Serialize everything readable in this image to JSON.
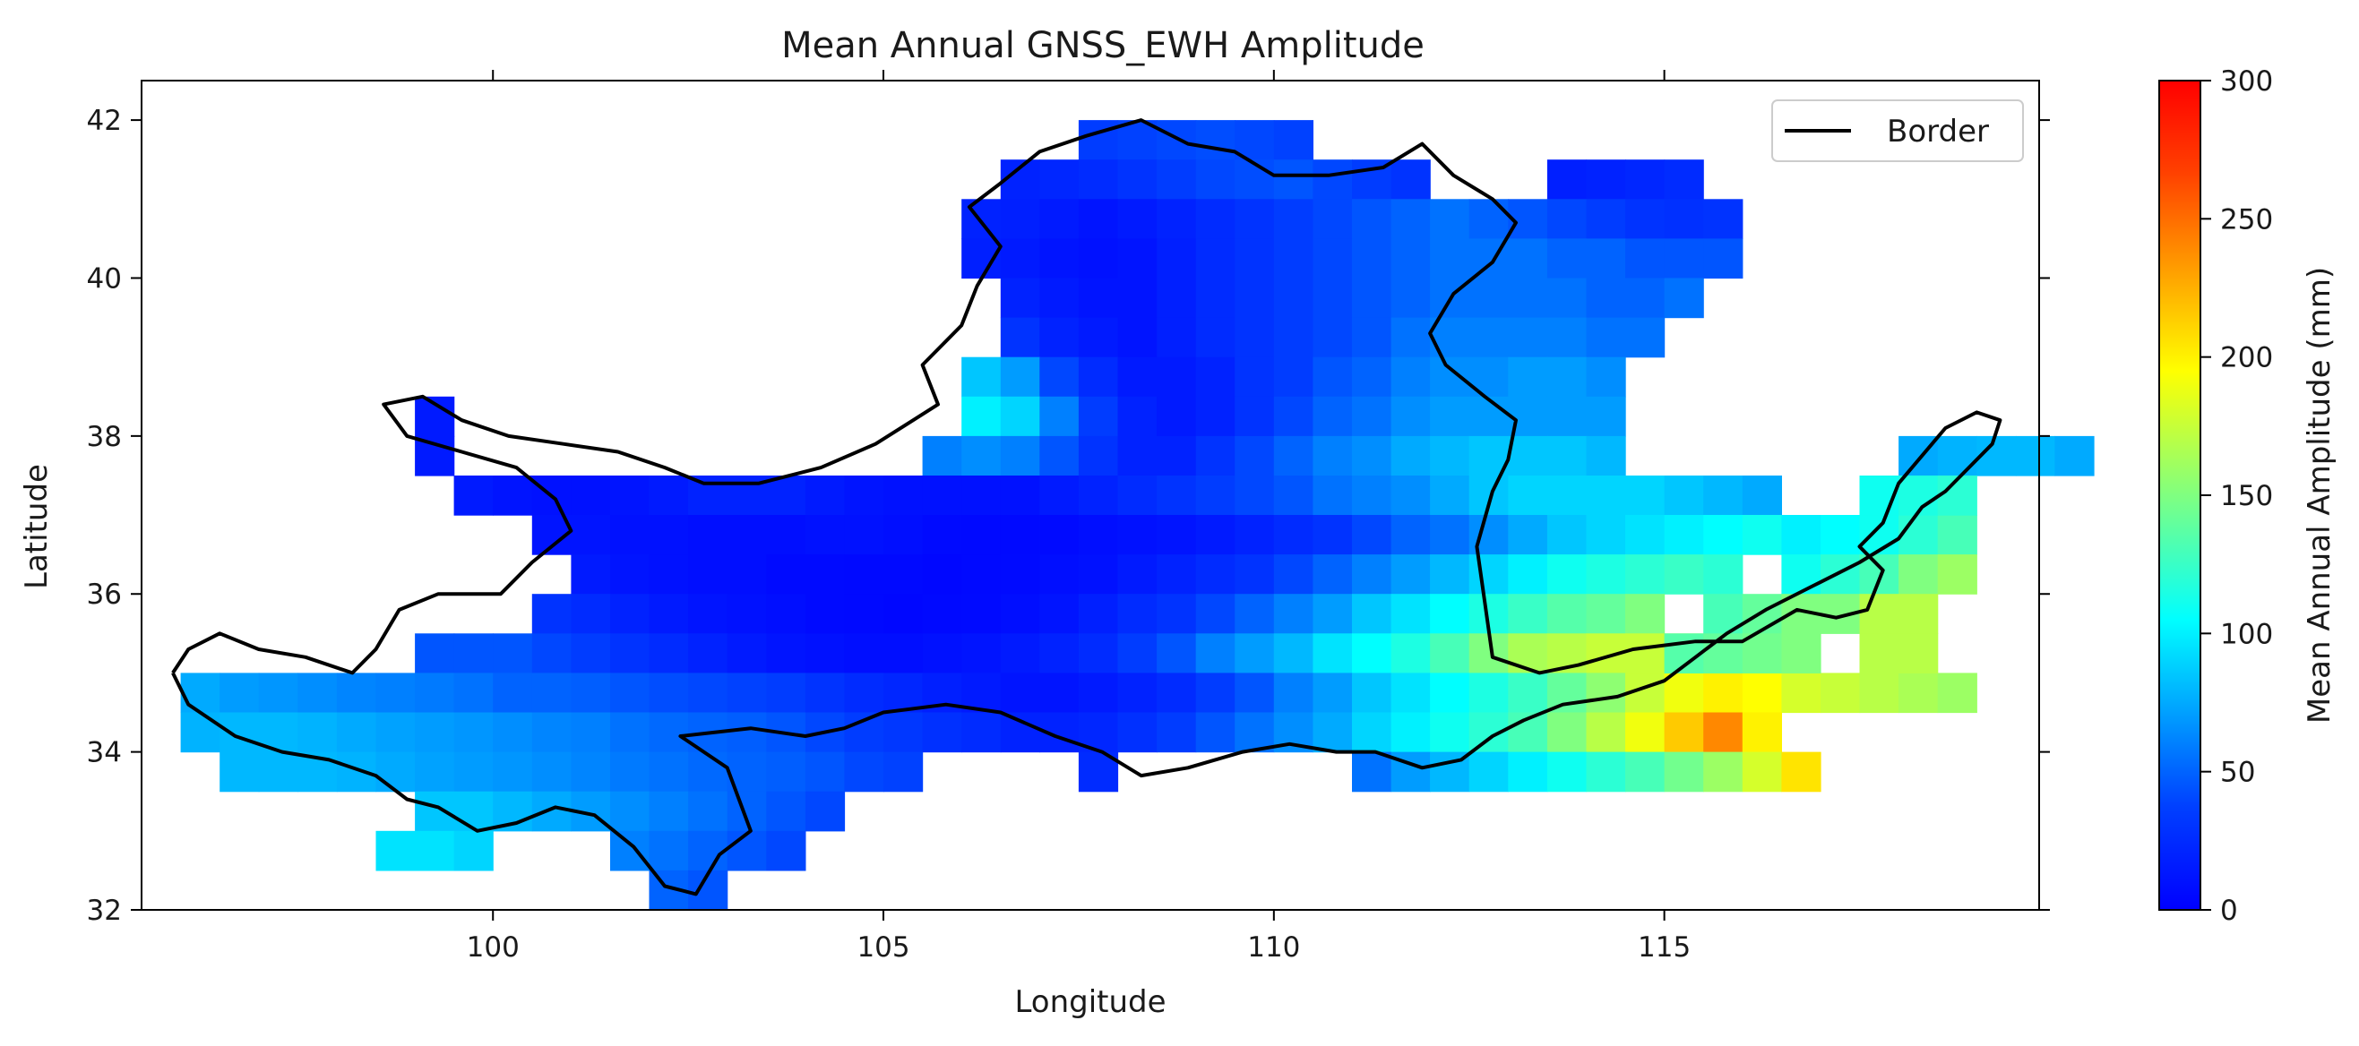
{
  "chart_data": {
    "type": "heatmap",
    "title": "Mean Annual GNSS_EWH Amplitude",
    "xlabel": "Longitude",
    "ylabel": "Latitude",
    "xlim": [
      95.5,
      119.8
    ],
    "ylim": [
      32,
      42.5
    ],
    "xticks": [
      "100",
      "105",
      "110",
      "115"
    ],
    "yticks": [
      "32",
      "34",
      "36",
      "38",
      "40",
      "42"
    ],
    "colorbar": {
      "label": "Mean Annual Amplitude (mm)",
      "range": [
        0,
        300
      ],
      "ticks": [
        "0",
        "50",
        "100",
        "150",
        "200",
        "250",
        "300"
      ],
      "colormap": "jet"
    },
    "legend": {
      "entries": [
        "Border"
      ],
      "placement": "top-right"
    },
    "grid": false,
    "cell_size_deg": 0.5,
    "grid_origin": {
      "lon": 96,
      "lat": 32.5
    },
    "grid_rows_from_north": [
      {
        "row_lat_top": 42.0,
        "start_lon": 107.5,
        "values": [
          35,
          38,
          40,
          42,
          40,
          38
        ]
      },
      {
        "row_lat_top": 41.5,
        "start_lon": 106.5,
        "values": [
          20,
          22,
          25,
          30,
          35,
          40,
          42,
          45,
          40,
          35,
          30,
          -1,
          -1,
          -1,
          18,
          20,
          22,
          25
        ]
      },
      {
        "row_lat_top": 41.0,
        "start_lon": 106.0,
        "values": [
          20,
          18,
          15,
          12,
          15,
          20,
          25,
          30,
          35,
          40,
          45,
          50,
          55,
          50,
          45,
          40,
          35,
          30,
          28,
          30
        ]
      },
      {
        "row_lat_top": 40.5,
        "start_lon": 106.0,
        "values": [
          18,
          15,
          12,
          10,
          12,
          18,
          25,
          30,
          35,
          40,
          45,
          50,
          55,
          55,
          55,
          50,
          50,
          45,
          45,
          45
        ]
      },
      {
        "row_lat_top": 40.0,
        "start_lon": 106.5,
        "values": [
          20,
          15,
          12,
          12,
          18,
          25,
          30,
          35,
          40,
          45,
          50,
          55,
          55,
          55,
          55,
          50,
          50,
          55
        ]
      },
      {
        "row_lat_top": 39.5,
        "start_lon": 106.5,
        "values": [
          30,
          20,
          15,
          12,
          18,
          25,
          30,
          35,
          40,
          45,
          55,
          60,
          60,
          60,
          60,
          55,
          55
        ]
      },
      {
        "row_lat_top": 39.0,
        "start_lon": 106.0,
        "values": [
          85,
          70,
          40,
          25,
          15,
          15,
          20,
          30,
          35,
          45,
          50,
          60,
          65,
          65,
          70,
          70,
          65
        ]
      },
      {
        "row_lat_top": 38.5,
        "start_lon": 106.0,
        "values": [
          100,
          90,
          60,
          35,
          20,
          15,
          20,
          30,
          40,
          50,
          55,
          65,
          70,
          70,
          70,
          70,
          70
        ]
      },
      {
        "row_lat_top": 38.0,
        "start_lon": 105.5,
        "values": [
          60,
          65,
          60,
          45,
          30,
          20,
          20,
          30,
          40,
          50,
          60,
          65,
          75,
          80,
          85,
          85,
          85,
          80
        ]
      },
      {
        "row_lat_top": 38.5,
        "start_lon": 99.0,
        "values": [
          15
        ]
      },
      {
        "row_lat_top": 38.0,
        "start_lon": 99.0,
        "values": [
          15
        ]
      },
      {
        "row_lat_top": 37.5,
        "start_lon": 99.5,
        "values": [
          15,
          12,
          10,
          10,
          12,
          15,
          20,
          20,
          20,
          15,
          12,
          10,
          10,
          10,
          10,
          15,
          20,
          25,
          30,
          35,
          40,
          45,
          55,
          60,
          65,
          75,
          85,
          90,
          90,
          90,
          90,
          85,
          80,
          75
        ]
      },
      {
        "row_lat_top": 37.0,
        "start_lon": 100.5,
        "values": [
          12,
          12,
          10,
          10,
          8,
          8,
          8,
          10,
          10,
          8,
          6,
          5,
          5,
          6,
          8,
          10,
          12,
          15,
          20,
          25,
          30,
          40,
          50,
          55,
          65,
          75,
          85,
          90,
          95,
          100,
          105,
          110,
          100
        ]
      },
      {
        "row_lat_top": 36.5,
        "start_lon": 101.0,
        "values": [
          15,
          12,
          10,
          8,
          8,
          6,
          6,
          5,
          5,
          4,
          5,
          6,
          8,
          10,
          15,
          20,
          25,
          30,
          40,
          50,
          60,
          70,
          80,
          90,
          100,
          110,
          115,
          120,
          125,
          120
        ]
      },
      {
        "row_lat_top": 36.0,
        "start_lon": 100.5,
        "values": [
          30,
          25,
          20,
          15,
          12,
          10,
          8,
          6,
          5,
          4,
          5,
          6,
          8,
          12,
          18,
          25,
          30,
          40,
          50,
          60,
          70,
          85,
          95,
          105,
          115,
          125,
          135,
          140,
          150
        ]
      },
      {
        "row_lat_top": 35.5,
        "start_lon": 99.0,
        "values": [
          45,
          45,
          45,
          40,
          35,
          30,
          25,
          20,
          15,
          12,
          10,
          8,
          8,
          10,
          12,
          15,
          20,
          25,
          35,
          45,
          60,
          70,
          80,
          95,
          105,
          115,
          130,
          150,
          165,
          170,
          175,
          175,
          170
        ]
      },
      {
        "row_lat_top": 35.0,
        "start_lon": 96.0,
        "values": [
          75,
          70,
          68,
          65,
          62,
          60,
          58,
          55,
          50,
          50,
          48,
          45,
          42,
          40,
          38,
          35,
          30,
          25,
          22,
          18,
          15,
          12,
          12,
          15,
          20,
          25,
          35,
          45,
          60,
          70,
          85,
          95,
          105,
          115,
          125,
          140,
          155,
          175,
          190,
          200,
          195,
          180,
          175,
          170,
          165,
          160
        ]
      },
      {
        "row_lat_top": 34.5,
        "start_lon": 96.0,
        "values": [
          78,
          80,
          80,
          78,
          75,
          72,
          70,
          68,
          65,
          62,
          60,
          55,
          52,
          50,
          48,
          45,
          40,
          35,
          32,
          28,
          25,
          20,
          20,
          22,
          28,
          35,
          45,
          55,
          65,
          75,
          90,
          100,
          110,
          120,
          130,
          150,
          170,
          190,
          215,
          240,
          200
        ]
      },
      {
        "row_lat_top": 34.0,
        "start_lon": 96.5,
        "values": [
          80,
          80,
          80,
          78,
          75,
          72,
          70,
          68,
          65,
          62,
          58,
          55,
          52,
          50,
          48,
          45,
          40,
          38,
          -1,
          -1,
          -1,
          -1,
          25,
          -1,
          -1,
          -1,
          -1,
          -1,
          -1,
          55,
          70,
          80,
          90,
          100,
          110,
          120,
          130,
          145,
          160,
          180,
          205
        ]
      },
      {
        "row_lat_top": 33.5,
        "start_lon": 99.0,
        "values": [
          85,
          85,
          80,
          75,
          70,
          65,
          60,
          55,
          50,
          45,
          40
        ]
      },
      {
        "row_lat_top": 33.0,
        "start_lon": 98.5,
        "values": [
          95,
          95,
          90,
          -1,
          -1,
          -1,
          60,
          55,
          50,
          45,
          40
        ]
      },
      {
        "row_lat_top": 32.5,
        "start_lon": 102.0,
        "values": [
          50,
          45
        ]
      },
      {
        "row_lat_top": 37.0,
        "start_lon": 117.0,
        "values": [
          105,
          110,
          120,
          130
        ]
      },
      {
        "row_lat_top": 36.5,
        "start_lon": 116.5,
        "values": [
          110,
          120,
          130,
          150,
          160
        ]
      },
      {
        "row_lat_top": 36.0,
        "start_lon": 115.5,
        "values": [
          130,
          140,
          150,
          150,
          170,
          170
        ]
      },
      {
        "row_lat_top": 35.5,
        "start_lon": 115.0,
        "values": [
          135,
          140,
          145,
          150,
          -1,
          170,
          170
        ]
      },
      {
        "row_lat_top": 38.0,
        "start_lon": 118.0,
        "values": [
          75,
          78,
          80,
          80,
          75
        ]
      },
      {
        "row_lat_top": 37.5,
        "start_lon": 117.5,
        "values": [
          110,
          115,
          120
        ]
      }
    ],
    "border_path": [
      [
        95.9,
        35.0
      ],
      [
        96.1,
        34.6
      ],
      [
        96.7,
        34.2
      ],
      [
        97.3,
        34.0
      ],
      [
        97.9,
        33.9
      ],
      [
        98.5,
        33.7
      ],
      [
        98.9,
        33.4
      ],
      [
        99.3,
        33.3
      ],
      [
        99.8,
        33.0
      ],
      [
        100.3,
        33.1
      ],
      [
        100.8,
        33.3
      ],
      [
        101.3,
        33.2
      ],
      [
        101.8,
        32.8
      ],
      [
        102.2,
        32.3
      ],
      [
        102.6,
        32.2
      ],
      [
        102.9,
        32.7
      ],
      [
        103.3,
        33.0
      ],
      [
        103.0,
        33.8
      ],
      [
        102.4,
        34.2
      ],
      [
        103.3,
        34.3
      ],
      [
        104.0,
        34.2
      ],
      [
        104.5,
        34.3
      ],
      [
        105.0,
        34.5
      ],
      [
        105.8,
        34.6
      ],
      [
        106.5,
        34.5
      ],
      [
        107.2,
        34.2
      ],
      [
        107.8,
        34.0
      ],
      [
        108.3,
        33.7
      ],
      [
        108.9,
        33.8
      ],
      [
        109.6,
        34.0
      ],
      [
        110.2,
        34.1
      ],
      [
        110.8,
        34.0
      ],
      [
        111.3,
        34.0
      ],
      [
        111.9,
        33.8
      ],
      [
        112.4,
        33.9
      ],
      [
        112.8,
        34.2
      ],
      [
        113.2,
        34.4
      ],
      [
        113.7,
        34.6
      ],
      [
        114.4,
        34.7
      ],
      [
        115.0,
        34.9
      ],
      [
        115.4,
        35.2
      ],
      [
        115.8,
        35.5
      ],
      [
        116.3,
        35.8
      ],
      [
        116.9,
        36.1
      ],
      [
        117.5,
        36.4
      ],
      [
        118.0,
        36.7
      ],
      [
        118.3,
        37.1
      ],
      [
        118.6,
        37.3
      ],
      [
        118.9,
        37.6
      ],
      [
        119.2,
        37.9
      ],
      [
        119.3,
        38.2
      ],
      [
        119.0,
        38.3
      ],
      [
        118.6,
        38.1
      ],
      [
        118.0,
        37.4
      ],
      [
        117.8,
        36.9
      ],
      [
        117.5,
        36.6
      ],
      [
        117.8,
        36.3
      ],
      [
        117.6,
        35.8
      ],
      [
        117.2,
        35.7
      ],
      [
        116.7,
        35.8
      ],
      [
        116.0,
        35.4
      ],
      [
        115.4,
        35.4
      ],
      [
        114.6,
        35.3
      ],
      [
        113.9,
        35.1
      ],
      [
        113.4,
        35.0
      ],
      [
        112.8,
        35.2
      ],
      [
        112.7,
        35.9
      ],
      [
        112.6,
        36.6
      ],
      [
        112.8,
        37.3
      ],
      [
        113.0,
        37.7
      ],
      [
        113.1,
        38.2
      ],
      [
        112.7,
        38.5
      ],
      [
        112.2,
        38.9
      ],
      [
        112.0,
        39.3
      ],
      [
        112.3,
        39.8
      ],
      [
        112.8,
        40.2
      ],
      [
        113.1,
        40.7
      ],
      [
        112.8,
        41.0
      ],
      [
        112.3,
        41.3
      ],
      [
        111.9,
        41.7
      ],
      [
        111.4,
        41.4
      ],
      [
        110.7,
        41.3
      ],
      [
        110.0,
        41.3
      ],
      [
        109.5,
        41.6
      ],
      [
        108.9,
        41.7
      ],
      [
        108.3,
        42.0
      ],
      [
        107.6,
        41.8
      ],
      [
        107.0,
        41.6
      ],
      [
        106.5,
        41.2
      ],
      [
        106.1,
        40.9
      ],
      [
        106.5,
        40.4
      ],
      [
        106.2,
        39.9
      ],
      [
        106.0,
        39.4
      ],
      [
        105.5,
        38.9
      ],
      [
        105.7,
        38.4
      ],
      [
        104.9,
        37.9
      ],
      [
        104.2,
        37.6
      ],
      [
        103.4,
        37.4
      ],
      [
        102.7,
        37.4
      ],
      [
        102.2,
        37.6
      ],
      [
        101.6,
        37.8
      ],
      [
        100.9,
        37.9
      ],
      [
        100.2,
        38.0
      ],
      [
        99.6,
        38.2
      ],
      [
        99.1,
        38.5
      ],
      [
        98.6,
        38.4
      ],
      [
        98.9,
        38.0
      ],
      [
        99.6,
        37.8
      ],
      [
        100.3,
        37.6
      ],
      [
        100.8,
        37.2
      ],
      [
        101.0,
        36.8
      ],
      [
        100.5,
        36.4
      ],
      [
        100.1,
        36.0
      ],
      [
        99.3,
        36.0
      ],
      [
        98.8,
        35.8
      ],
      [
        98.5,
        35.3
      ],
      [
        98.2,
        35.0
      ],
      [
        97.6,
        35.2
      ],
      [
        97.0,
        35.3
      ],
      [
        96.5,
        35.5
      ],
      [
        96.1,
        35.3
      ],
      [
        95.9,
        35.0
      ]
    ]
  }
}
